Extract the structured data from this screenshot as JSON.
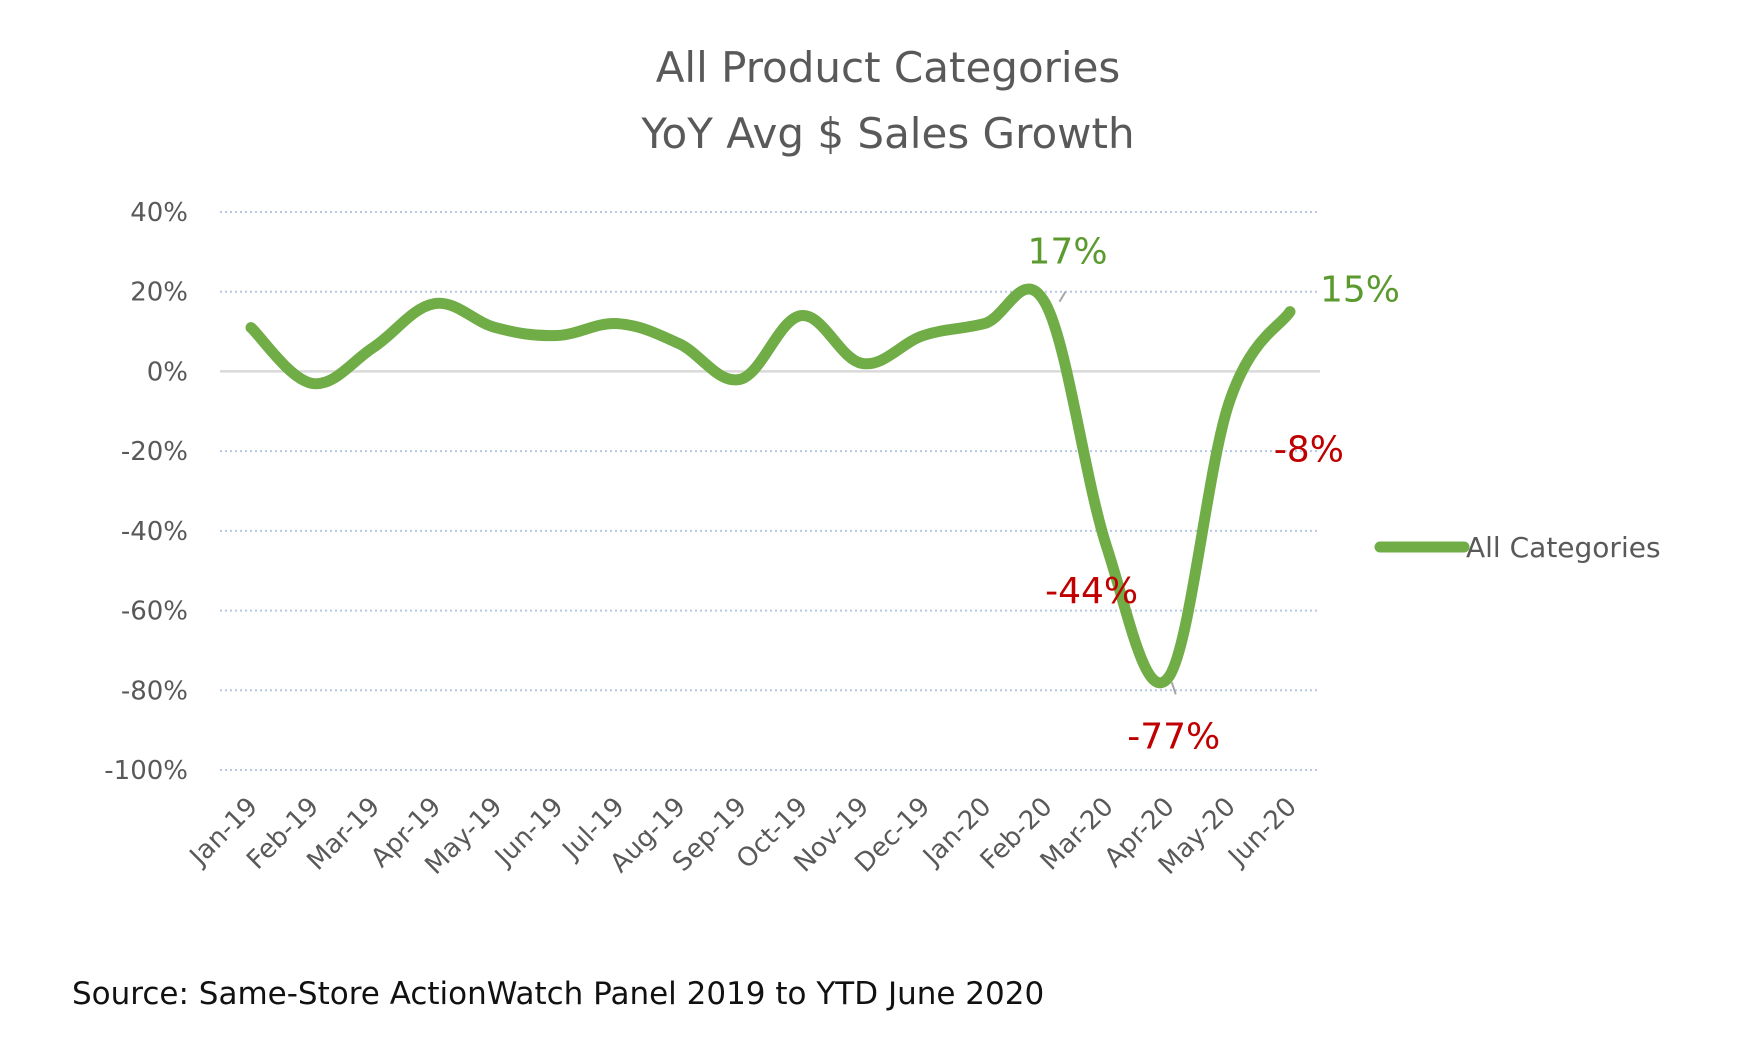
{
  "chart_data": {
    "type": "line",
    "title": "All Product Categories",
    "subtitle": "YoY Avg $ Sales Growth",
    "categories": [
      "Jan-19",
      "Feb-19",
      "Mar-19",
      "Apr-19",
      "May-19",
      "Jun-19",
      "Jul-19",
      "Aug-19",
      "Sep-19",
      "Oct-19",
      "Nov-19",
      "Dec-19",
      "Jan-20",
      "Feb-20",
      "Mar-20",
      "Apr-20",
      "May-20",
      "Jun-20"
    ],
    "series": [
      {
        "name": "All Categories",
        "color": "#70ad47",
        "values": [
          11,
          -3,
          6,
          17,
          11,
          9,
          12,
          7,
          -2,
          14,
          2,
          9,
          12,
          17,
          -44,
          -77,
          -8,
          15
        ]
      }
    ],
    "ylim": [
      -100,
      40
    ],
    "yticks": [
      40,
      20,
      0,
      -20,
      -40,
      -60,
      -80,
      -100
    ],
    "ytick_labels": [
      "40%",
      "20%",
      "0%",
      "-20%",
      "-40%",
      "-60%",
      "-80%",
      "-100%"
    ],
    "xlabel": "",
    "ylabel": "",
    "grid": true,
    "legend": "right",
    "annotations": [
      {
        "index": 13,
        "text": "17%",
        "tone": "positive"
      },
      {
        "index": 17,
        "text": "15%",
        "tone": "positive"
      },
      {
        "index": 16,
        "text": "-8%",
        "tone": "negative"
      },
      {
        "index": 14,
        "text": "-44%",
        "tone": "negative"
      },
      {
        "index": 15,
        "text": "-77%",
        "tone": "negative"
      }
    ]
  },
  "source": "Source:  Same-Store ActionWatch Panel 2019 to YTD June 2020",
  "colors": {
    "line": "#70ad47",
    "positive_label": "#5b9a2f",
    "negative_label": "#c00000",
    "text": "#595959"
  }
}
